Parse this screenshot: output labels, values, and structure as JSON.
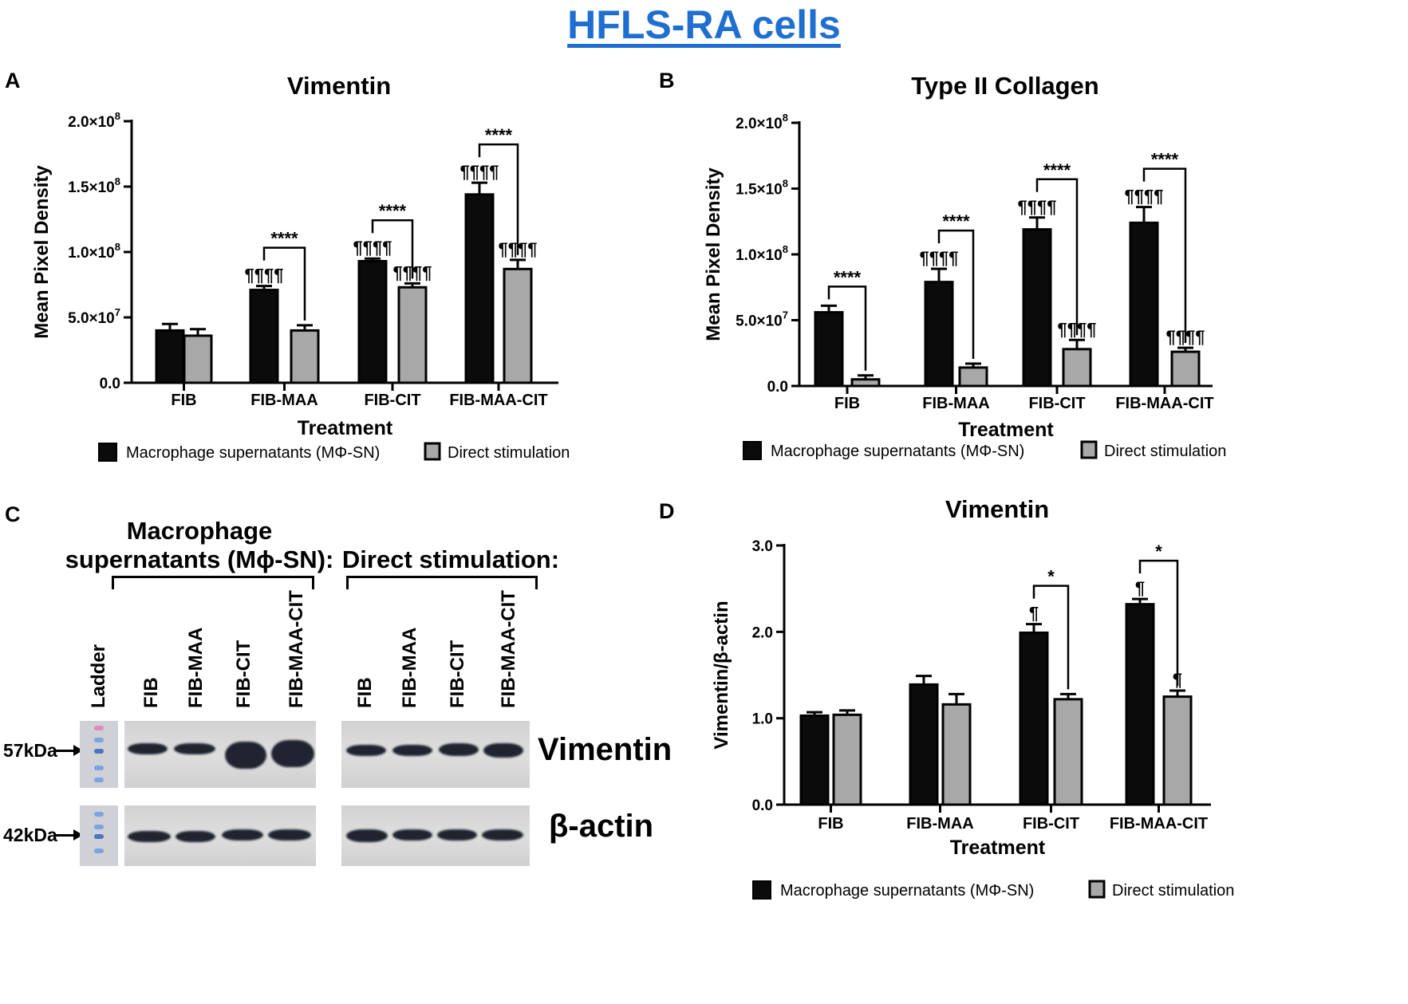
{
  "figure_title": "HFLS-RA cells",
  "panels": {
    "A": "A",
    "B": "B",
    "C": "C",
    "D": "D"
  },
  "legend": {
    "msn": "Macrophage supernatants (MΦ-SN)",
    "direct": "Direct stimulation"
  },
  "colors": {
    "msn": "#0b0b0b",
    "direct": "#a8a8a8",
    "title": "#1f6fd0"
  },
  "blot": {
    "group1_title_line1": "Macrophage",
    "group1_title_line2": "supernatants (Mϕ-SN):",
    "group2_title": "Direct stimulation:",
    "lanes": [
      "Ladder",
      "FIB",
      "FIB-MAA",
      "FIB-CIT",
      "FIB-MAA-CIT",
      "FIB",
      "FIB-MAA",
      "FIB-CIT",
      "FIB-MAA-CIT"
    ],
    "kda_top": "57kDa",
    "kda_bottom": "42kDa",
    "protein_top": "Vimentin",
    "protein_bottom": "β-actin"
  },
  "chart_data": [
    {
      "id": "A",
      "type": "bar",
      "title": "Vimentin",
      "xlabel": "Treatment",
      "ylabel": "Mean Pixel Density",
      "categories": [
        "FIB",
        "FIB-MAA",
        "FIB-CIT",
        "FIB-MAA-CIT"
      ],
      "ylim": [
        0,
        200000000
      ],
      "yticks": [
        0,
        50000000,
        100000000,
        150000000,
        200000000
      ],
      "ytick_labels": [
        [
          "0.0",
          ""
        ],
        [
          "5.0×10",
          "7"
        ],
        [
          "1.0×10",
          "8"
        ],
        [
          "1.5×10",
          "8"
        ],
        [
          "2.0×10",
          "8"
        ]
      ],
      "series": [
        {
          "name": "Macrophage supernatants (MΦ-SN)",
          "values": [
            40000000,
            71000000,
            93000000,
            144000000
          ],
          "errors": [
            5000000,
            3000000,
            2000000,
            9000000
          ],
          "marks": [
            "",
            "¶¶¶¶",
            "¶¶¶¶",
            "¶¶¶¶"
          ]
        },
        {
          "name": "Direct stimulation",
          "values": [
            36000000,
            40000000,
            73000000,
            87000000
          ],
          "errors": [
            5000000,
            4000000,
            3000000,
            7000000
          ],
          "marks": [
            "",
            "",
            "¶¶¶¶",
            "¶¶¶¶"
          ]
        }
      ],
      "comparisons": [
        {
          "category": 1,
          "label": "****"
        },
        {
          "category": 2,
          "label": "****"
        },
        {
          "category": 3,
          "label": "****"
        }
      ]
    },
    {
      "id": "B",
      "type": "bar",
      "title": "Type II Collagen",
      "xlabel": "Treatment",
      "ylabel": "Mean Pixel Density",
      "categories": [
        "FIB",
        "FIB-MAA",
        "FIB-CIT",
        "FIB-MAA-CIT"
      ],
      "ylim": [
        0,
        200000000
      ],
      "yticks": [
        0,
        50000000,
        100000000,
        150000000,
        200000000
      ],
      "ytick_labels": [
        [
          "0.0",
          ""
        ],
        [
          "5.0×10",
          "7"
        ],
        [
          "1.0×10",
          "8"
        ],
        [
          "1.5×10",
          "8"
        ],
        [
          "2.0×10",
          "8"
        ]
      ],
      "series": [
        {
          "name": "Macrophage supernatants (MΦ-SN)",
          "values": [
            56000000,
            79000000,
            119000000,
            124000000
          ],
          "errors": [
            5000000,
            10000000,
            9000000,
            12000000
          ],
          "marks": [
            "",
            "¶¶¶¶",
            "¶¶¶¶",
            "¶¶¶¶"
          ]
        },
        {
          "name": "Direct stimulation",
          "values": [
            5000000,
            14000000,
            28000000,
            26000000
          ],
          "errors": [
            3000000,
            3000000,
            7000000,
            3000000
          ],
          "marks": [
            "",
            "",
            "¶¶¶¶",
            "¶¶¶¶"
          ]
        }
      ],
      "comparisons": [
        {
          "category": 0,
          "label": "****"
        },
        {
          "category": 1,
          "label": "****"
        },
        {
          "category": 2,
          "label": "****"
        },
        {
          "category": 3,
          "label": "****"
        }
      ]
    },
    {
      "id": "D",
      "type": "bar",
      "title": "Vimentin",
      "xlabel": "Treatment",
      "ylabel": "Vimentin/β-actin",
      "categories": [
        "FIB",
        "FIB-MAA",
        "FIB-CIT",
        "FIB-MAA-CIT"
      ],
      "ylim": [
        0,
        3
      ],
      "yticks": [
        0,
        1,
        2,
        3
      ],
      "ytick_labels": [
        [
          "0.0",
          ""
        ],
        [
          "1.0",
          ""
        ],
        [
          "2.0",
          ""
        ],
        [
          "3.0",
          ""
        ]
      ],
      "series": [
        {
          "name": "Macrophage supernatants (MΦ-SN)",
          "values": [
            1.03,
            1.39,
            1.99,
            2.32
          ],
          "errors": [
            0.04,
            0.1,
            0.1,
            0.06
          ],
          "marks": [
            "",
            "",
            "¶",
            "¶"
          ]
        },
        {
          "name": "Direct stimulation",
          "values": [
            1.04,
            1.16,
            1.22,
            1.25
          ],
          "errors": [
            0.05,
            0.12,
            0.06,
            0.07
          ],
          "marks": [
            "",
            "",
            "",
            "¶"
          ]
        }
      ],
      "comparisons": [
        {
          "category": 2,
          "label": "*"
        },
        {
          "category": 3,
          "label": "*"
        }
      ]
    }
  ]
}
